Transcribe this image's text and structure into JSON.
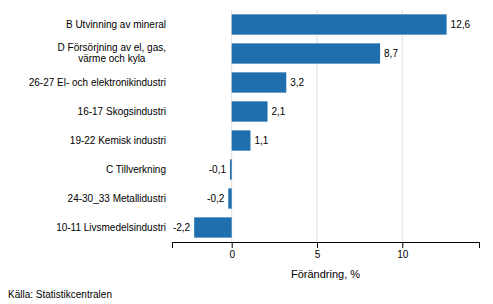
{
  "chart_data": {
    "type": "bar",
    "orientation": "horizontal",
    "categories": [
      "10-11 Livsmedelsindustri",
      "24-30_33 Metallidustri",
      "C Tillverkning",
      "19-22 Kemisk industri",
      "16-17 Skogsindustri",
      "26-27 El- och elektronikindustri",
      "D Försörjning av el, gas,\nvärme och kyla",
      "B Utvinning av mineral"
    ],
    "values": [
      -2.2,
      -0.2,
      -0.1,
      1.1,
      2.1,
      3.2,
      8.7,
      12.6
    ],
    "value_labels": [
      "-2,2",
      "-0,2",
      "-0,1",
      "1,1",
      "2,1",
      "3,2",
      "8,7",
      "12,6"
    ],
    "data_labels": true,
    "color": "#1F6FAE",
    "xlabel": "Förändring, %",
    "source": "Källa: Statistikcentralen",
    "xlim": [
      -3.5,
      14.5
    ],
    "xticks": [
      0,
      5,
      10
    ],
    "grid": true
  }
}
